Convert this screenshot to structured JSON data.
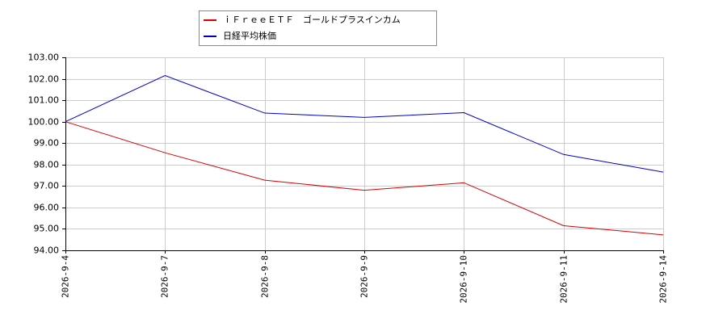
{
  "chart_data": {
    "type": "line",
    "categories": [
      "2026-9-4",
      "2026-9-7",
      "2026-9-8",
      "2026-9-9",
      "2026-9-10",
      "2026-9-11",
      "2026-9-14"
    ],
    "series": [
      {
        "name": "ｉＦｒｅｅＥＴＦ　ゴールドプラスインカム",
        "color": "#dd0000",
        "values": [
          100.0,
          98.55,
          97.27,
          96.8,
          97.15,
          95.15,
          94.72
        ]
      },
      {
        "name": "日経平均株価",
        "color": "#0000cc",
        "values": [
          100.0,
          102.15,
          100.4,
          100.2,
          100.42,
          98.47,
          97.65
        ]
      }
    ],
    "ylim": [
      94,
      103
    ],
    "yticks": [
      {
        "value": 94,
        "label": "94.00"
      },
      {
        "value": 95,
        "label": "95.00"
      },
      {
        "value": 96,
        "label": "96.00"
      },
      {
        "value": 97,
        "label": "97.00"
      },
      {
        "value": 98,
        "label": "98.00"
      },
      {
        "value": 99,
        "label": "99.00"
      },
      {
        "value": 100,
        "label": "100.00"
      },
      {
        "value": 101,
        "label": "101.00"
      },
      {
        "value": 102,
        "label": "102.00"
      },
      {
        "value": 103,
        "label": "103.00"
      }
    ],
    "grid": true
  }
}
